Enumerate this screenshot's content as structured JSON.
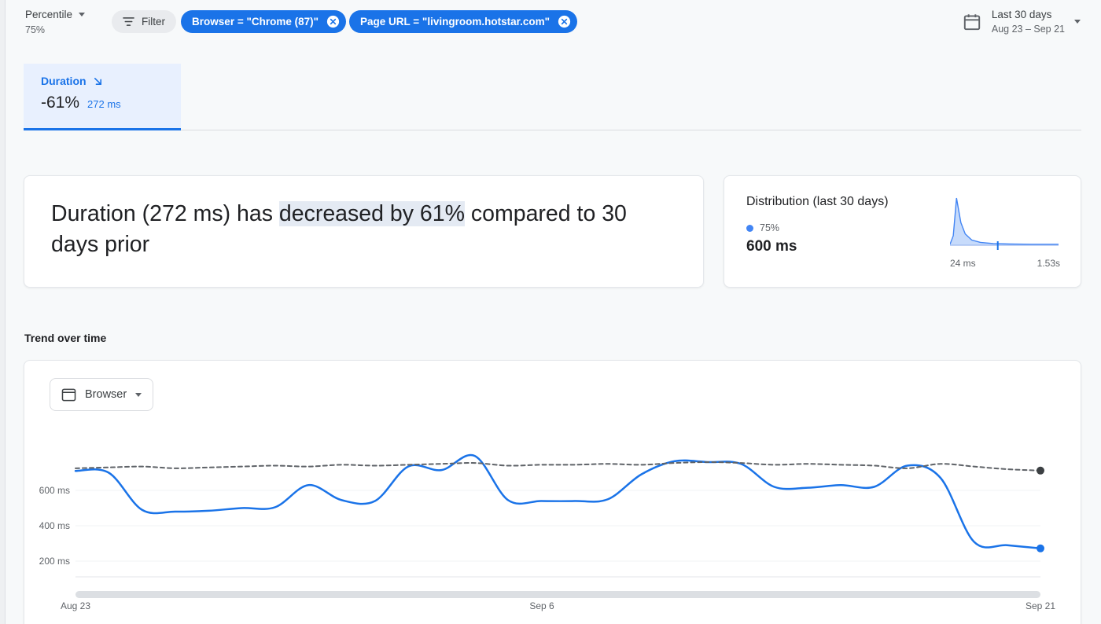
{
  "colors": {
    "accent": "#1a73e8",
    "tab_bg": "#e8f0fe",
    "highlight_bg": "#e4eaf3"
  },
  "header": {
    "percentile": {
      "label": "Percentile",
      "value": "75%"
    },
    "filter_button_label": "Filter",
    "chips": [
      {
        "label": "Browser = \"Chrome (87)\""
      },
      {
        "label": "Page URL = \"livingroom.hotstar.com\""
      }
    ],
    "date_range": {
      "label": "Last 30 days",
      "value": "Aug 23 – Sep 21"
    }
  },
  "metric_tab": {
    "title": "Duration",
    "delta": "-61%",
    "value": "272 ms"
  },
  "summary_card": {
    "text_prefix": "Duration (272 ms) has ",
    "text_highlight": "decreased by 61%",
    "text_suffix": " compared to 30 days prior"
  },
  "distribution_card": {
    "title": "Distribution (last 30 days)",
    "percentile_label": "75%",
    "percentile_value": "600 ms"
  },
  "trend_section": {
    "title": "Trend over time",
    "breakdown_dropdown_label": "Browser"
  },
  "chart_data": [
    {
      "type": "area",
      "title": "Distribution (last 30 days)",
      "x_axis_labels": [
        "24 ms",
        "1.53s"
      ],
      "points_norm": [
        [
          0,
          0.02
        ],
        [
          0.03,
          0.2
        ],
        [
          0.06,
          1.0
        ],
        [
          0.1,
          0.48
        ],
        [
          0.14,
          0.24
        ],
        [
          0.2,
          0.11
        ],
        [
          0.28,
          0.06
        ],
        [
          0.4,
          0.035
        ],
        [
          0.55,
          0.025
        ],
        [
          0.75,
          0.02
        ],
        [
          1,
          0.02
        ]
      ],
      "percentile_marker_x_norm": 0.44
    },
    {
      "type": "line",
      "title": "Trend over time",
      "x_tick_labels": [
        "Aug 23",
        "Sep 6",
        "Sep 21"
      ],
      "y_tick_labels": [
        "600 ms",
        "400 ms",
        "200 ms"
      ],
      "yticks_ms": [
        600,
        400,
        200
      ],
      "ylim_ms": [
        150,
        850
      ],
      "grid": true,
      "legend_position": "none",
      "series": [
        {
          "name": "current-period",
          "style": "solid",
          "color": "#1a73e8",
          "unit": "ms",
          "values": [
            710,
            700,
            490,
            480,
            485,
            500,
            505,
            630,
            545,
            540,
            735,
            715,
            795,
            545,
            540,
            540,
            550,
            690,
            765,
            760,
            750,
            620,
            615,
            630,
            620,
            740,
            670,
            310,
            290,
            272
          ]
        },
        {
          "name": "previous-period",
          "style": "dashed",
          "color": "#5f6368",
          "unit": "ms",
          "values": [
            725,
            730,
            735,
            725,
            730,
            735,
            740,
            735,
            745,
            740,
            745,
            750,
            755,
            740,
            745,
            745,
            750,
            745,
            755,
            760,
            755,
            745,
            750,
            745,
            740,
            725,
            750,
            735,
            720,
            712
          ]
        }
      ]
    }
  ]
}
